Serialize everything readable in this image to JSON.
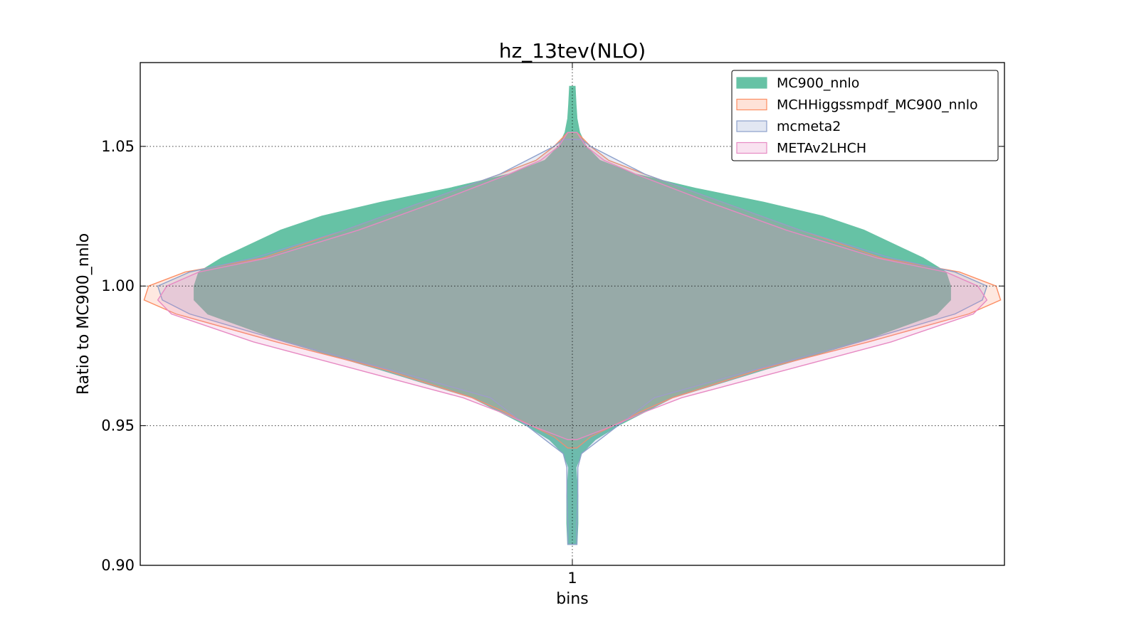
{
  "chart_data": {
    "type": "violin",
    "title": "hz_13tev(NLO)",
    "xlabel": "bins",
    "ylabel": "Ratio to MC900_nnlo",
    "categories": [
      "1"
    ],
    "ylim": [
      0.9,
      1.08
    ],
    "yticks": [
      "0.90",
      "0.95",
      "1.00",
      "1.05"
    ],
    "grid": true,
    "legend_position": "upper right",
    "series": [
      {
        "name": "MC900_nnlo",
        "color": "#66c2a5",
        "profile": [
          [
            0.9075,
            0.01
          ],
          [
            0.915,
            0.012
          ],
          [
            0.925,
            0.012
          ],
          [
            0.935,
            0.008
          ],
          [
            0.94,
            0.02
          ],
          [
            0.945,
            0.05
          ],
          [
            0.95,
            0.1
          ],
          [
            0.96,
            0.22
          ],
          [
            0.97,
            0.42
          ],
          [
            0.98,
            0.63
          ],
          [
            0.99,
            0.8
          ],
          [
            0.995,
            0.83
          ],
          [
            1.0,
            0.83
          ],
          [
            1.005,
            0.82
          ],
          [
            1.01,
            0.77
          ],
          [
            1.02,
            0.64
          ],
          [
            1.025,
            0.55
          ],
          [
            1.03,
            0.42
          ],
          [
            1.035,
            0.27
          ],
          [
            1.04,
            0.14
          ],
          [
            1.045,
            0.06
          ],
          [
            1.05,
            0.03
          ],
          [
            1.055,
            0.016
          ],
          [
            1.06,
            0.01
          ],
          [
            1.065,
            0.008
          ],
          [
            1.0715,
            0.006
          ]
        ]
      },
      {
        "name": "MCHHiggssmpdf_MC900_nnlo",
        "color": "#fc8d62",
        "profile": [
          [
            0.942,
            0.01
          ],
          [
            0.946,
            0.04
          ],
          [
            0.95,
            0.09
          ],
          [
            0.955,
            0.15
          ],
          [
            0.96,
            0.22
          ],
          [
            0.97,
            0.41
          ],
          [
            0.98,
            0.65
          ],
          [
            0.99,
            0.87
          ],
          [
            0.995,
            0.94
          ],
          [
            1.0,
            0.93
          ],
          [
            1.005,
            0.85
          ],
          [
            1.01,
            0.68
          ],
          [
            1.02,
            0.5
          ],
          [
            1.03,
            0.33
          ],
          [
            1.04,
            0.16
          ],
          [
            1.045,
            0.08
          ],
          [
            1.05,
            0.04
          ],
          [
            1.055,
            0.01
          ]
        ]
      },
      {
        "name": "mcmeta2",
        "color": "#8da0cb",
        "profile": [
          [
            0.9075,
            0.01
          ],
          [
            0.915,
            0.01
          ],
          [
            0.925,
            0.012
          ],
          [
            0.935,
            0.012
          ],
          [
            0.94,
            0.02
          ],
          [
            0.945,
            0.06
          ],
          [
            0.95,
            0.1
          ],
          [
            0.955,
            0.14
          ],
          [
            0.96,
            0.18
          ],
          [
            0.97,
            0.4
          ],
          [
            0.98,
            0.63
          ],
          [
            0.99,
            0.84
          ],
          [
            0.995,
            0.9
          ],
          [
            1.0,
            0.91
          ],
          [
            1.005,
            0.84
          ],
          [
            1.01,
            0.7
          ],
          [
            1.015,
            0.6
          ],
          [
            1.02,
            0.5
          ],
          [
            1.03,
            0.33
          ],
          [
            1.04,
            0.16
          ],
          [
            1.045,
            0.1
          ],
          [
            1.05,
            0.04
          ],
          [
            1.0525,
            0.02
          ]
        ]
      },
      {
        "name": "METAv2LHCH",
        "color": "#e78ac3",
        "profile": [
          [
            0.945,
            0.01
          ],
          [
            0.95,
            0.09
          ],
          [
            0.955,
            0.16
          ],
          [
            0.96,
            0.24
          ],
          [
            0.97,
            0.47
          ],
          [
            0.98,
            0.7
          ],
          [
            0.99,
            0.88
          ],
          [
            0.995,
            0.91
          ],
          [
            1.0,
            0.89
          ],
          [
            1.005,
            0.82
          ],
          [
            1.01,
            0.67
          ],
          [
            1.02,
            0.47
          ],
          [
            1.03,
            0.3
          ],
          [
            1.04,
            0.14
          ],
          [
            1.045,
            0.07
          ],
          [
            1.05,
            0.03
          ],
          [
            1.055,
            0.01
          ]
        ]
      }
    ]
  }
}
